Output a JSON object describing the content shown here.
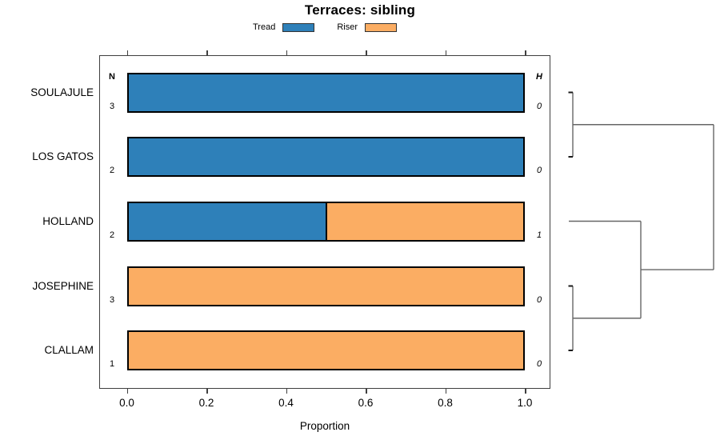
{
  "title": "Terraces: sibling",
  "legend": [
    {
      "label": "Tread",
      "color": "#2E80B9"
    },
    {
      "label": "Riser",
      "color": "#FBAD63"
    }
  ],
  "table": {
    "n_header": "N",
    "h_header": "H"
  },
  "rows": [
    {
      "label": "SOULAJULE",
      "n": "3",
      "h": "0"
    },
    {
      "label": "LOS GATOS",
      "n": "2",
      "h": "0"
    },
    {
      "label": "HOLLAND",
      "n": "2",
      "h": "1"
    },
    {
      "label": "JOSEPHINE",
      "n": "3",
      "h": "0"
    },
    {
      "label": "CLALLAM",
      "n": "1",
      "h": "0"
    }
  ],
  "axis": {
    "label": "Proportion",
    "ticks": [
      "0.0",
      "0.2",
      "0.4",
      "0.6",
      "0.8",
      "1.0"
    ]
  },
  "chart_data": {
    "type": "bar",
    "orientation": "horizontal",
    "stacked": true,
    "title": "Terraces: sibling",
    "xlabel": "Proportion",
    "xlim": [
      0,
      1
    ],
    "xticks": [
      0.0,
      0.2,
      0.4,
      0.6,
      0.8,
      1.0
    ],
    "grid": false,
    "legend_position": "top",
    "categories": [
      "SOULAJULE",
      "LOS GATOS",
      "HOLLAND",
      "JOSEPHINE",
      "CLALLAM"
    ],
    "series": [
      {
        "name": "Tread",
        "color": "#2E80B9",
        "values": [
          1.0,
          1.0,
          0.5,
          0.0,
          0.0
        ]
      },
      {
        "name": "Riser",
        "color": "#FBAD63",
        "values": [
          0.0,
          0.0,
          0.5,
          1.0,
          1.0
        ]
      }
    ],
    "N_values": [
      3,
      2,
      2,
      3,
      1
    ],
    "H_values": [
      0,
      0,
      1,
      0,
      0
    ],
    "dendrogram": {
      "side": "right",
      "merges": [
        {
          "members": [
            "SOULAJULE",
            "LOS GATOS"
          ]
        },
        {
          "members": [
            "JOSEPHINE",
            "CLALLAM"
          ]
        },
        {
          "members": [
            "HOLLAND",
            "(JOSEPHINE,CLALLAM)"
          ]
        },
        {
          "members": [
            "(SOULAJULE,LOS GATOS)",
            "(HOLLAND,JOSEPHINE,CLALLAM)"
          ]
        }
      ]
    }
  }
}
